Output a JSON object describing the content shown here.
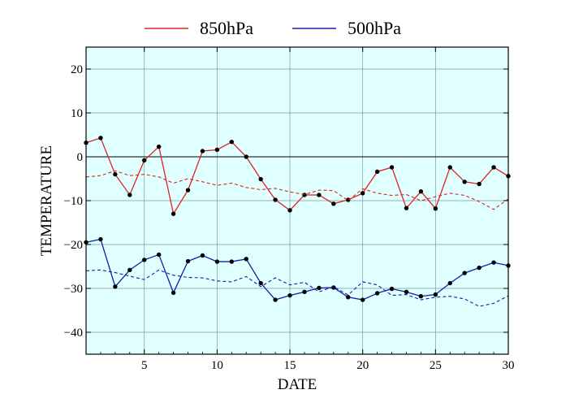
{
  "chart_data": {
    "type": "line",
    "title": "",
    "xlabel": "DATE",
    "ylabel": "TEMPERATURE",
    "xlim": [
      1,
      30
    ],
    "ylim": [
      -45,
      25
    ],
    "xticks": [
      5,
      10,
      15,
      20,
      25,
      30
    ],
    "yticks": [
      -40,
      -30,
      -20,
      -10,
      0,
      10,
      20
    ],
    "xtick_labels": [
      "5",
      "10",
      "15",
      "20",
      "25",
      "30"
    ],
    "ytick_labels": [
      "−40",
      "−30",
      "−20",
      "−10",
      "0",
      "10",
      "20"
    ],
    "grid": true,
    "zero_line": true,
    "background": "#e0ffff",
    "legend": {
      "placement": "top",
      "entries": [
        "850hPa",
        "500hPa"
      ]
    },
    "x": [
      1,
      2,
      3,
      4,
      5,
      6,
      7,
      8,
      9,
      10,
      11,
      12,
      13,
      14,
      15,
      16,
      17,
      18,
      19,
      20,
      21,
      22,
      23,
      24,
      25,
      26,
      27,
      28,
      29,
      30
    ],
    "series": [
      {
        "name": "850hPa",
        "style": "solid",
        "markers": true,
        "color": "#dd2222",
        "values": [
          3.2,
          4.3,
          -4.0,
          -8.7,
          -0.8,
          2.3,
          -13.0,
          -7.6,
          1.3,
          1.6,
          3.4,
          0.0,
          -5.1,
          -9.8,
          -12.2,
          -8.7,
          -8.7,
          -10.7,
          -9.8,
          -8.3,
          -3.4,
          -2.4,
          -11.7,
          -7.9,
          -11.8,
          -2.4,
          -5.7,
          -6.2,
          -2.4,
          -4.4
        ]
      },
      {
        "name": "",
        "style": "dashed",
        "markers": false,
        "color": "#dd2222",
        "values": [
          -4.6,
          -4.3,
          -3.2,
          -4.3,
          -4.0,
          -4.6,
          -6.0,
          -5.0,
          -5.7,
          -6.5,
          -6.0,
          -7.0,
          -7.5,
          -7.2,
          -8.0,
          -8.6,
          -7.6,
          -7.7,
          -10.0,
          -7.3,
          -8.3,
          -8.8,
          -8.6,
          -10.0,
          -9.1,
          -8.3,
          -8.8,
          -10.2,
          -12.0,
          -9.6
        ]
      },
      {
        "name": "500hPa",
        "style": "solid",
        "markers": true,
        "color": "#1a1aaa",
        "values": [
          -19.5,
          -18.8,
          -29.6,
          -25.8,
          -23.5,
          -22.3,
          -31.0,
          -23.8,
          -22.5,
          -23.9,
          -23.9,
          -23.3,
          -28.8,
          -32.6,
          -31.6,
          -30.8,
          -29.9,
          -29.8,
          -32.0,
          -32.6,
          -31.1,
          -30.1,
          -30.8,
          -31.8,
          -31.4,
          -28.8,
          -26.5,
          -25.3,
          -24.1,
          -24.8
        ]
      },
      {
        "name": "",
        "style": "dashed",
        "markers": false,
        "color": "#1a1aaa",
        "values": [
          -26.0,
          -25.8,
          -26.4,
          -27.2,
          -28.0,
          -25.8,
          -27.0,
          -27.5,
          -27.6,
          -28.3,
          -28.5,
          -27.3,
          -29.6,
          -27.6,
          -29.2,
          -28.6,
          -30.8,
          -29.6,
          -31.5,
          -28.5,
          -29.2,
          -31.6,
          -31.4,
          -32.6,
          -32.0,
          -31.8,
          -32.4,
          -34.1,
          -33.4,
          -31.7
        ]
      }
    ]
  }
}
